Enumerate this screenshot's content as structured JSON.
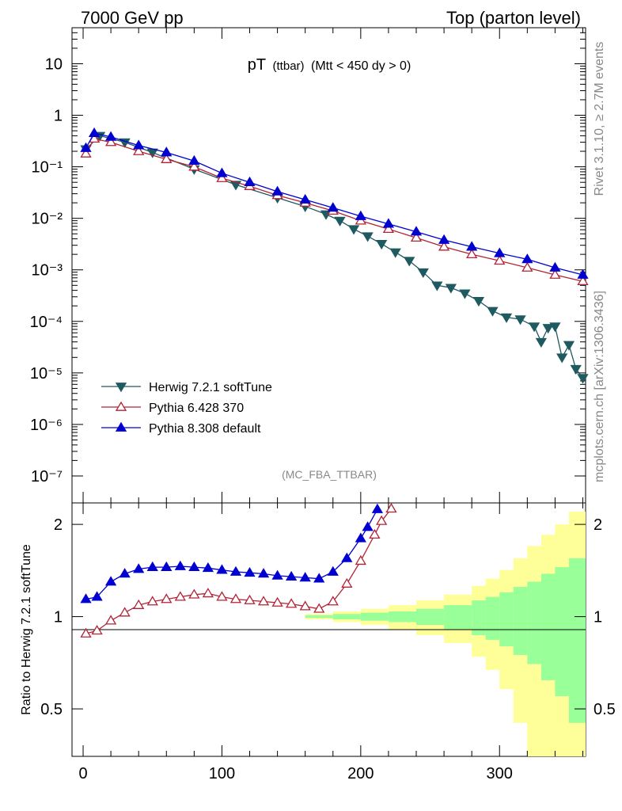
{
  "header": {
    "left": "7000 GeV pp",
    "right": "Top (parton level)"
  },
  "side_labels": {
    "rivet": "Rivet 3.1.10, ≥ 2.7M events",
    "mcplots": "mcplots.cern.ch [arXiv:1306.3436]"
  },
  "chart_data": [
    {
      "type": "line",
      "panel": "main",
      "title_main": "pT",
      "title_sub": "(ttbar)",
      "title_cut": "(Mtt < 450 dy > 0)",
      "watermark": "(MC_FBA_TTBAR)",
      "yscale": "log",
      "xlim": [
        -8,
        362
      ],
      "ylim": [
        3e-08,
        50
      ],
      "ytick_labels": [
        "10",
        "1",
        "10⁻¹",
        "10⁻²",
        "10⁻³",
        "10⁻⁴",
        "10⁻⁵",
        "10⁻⁶",
        "10⁻⁷"
      ],
      "legend_position": "bottom-left",
      "series": [
        {
          "name": "Herwig 7.2.1 softTune",
          "color": "#1f5a61",
          "marker": "triangle-down-filled",
          "points": [
            [
              2,
              0.22
            ],
            [
              12,
              0.4
            ],
            [
              30,
              0.3
            ],
            [
              50,
              0.19
            ],
            [
              80,
              0.09
            ],
            [
              110,
              0.045
            ],
            [
              140,
              0.025
            ],
            [
              160,
              0.017
            ],
            [
              175,
              0.012
            ],
            [
              185,
              0.009
            ],
            [
              195,
              0.0062
            ],
            [
              205,
              0.0045
            ],
            [
              215,
              0.0032
            ],
            [
              225,
              0.0022
            ],
            [
              235,
              0.0015
            ],
            [
              245,
              0.0009
            ],
            [
              255,
              0.0005
            ],
            [
              265,
              0.00045
            ],
            [
              275,
              0.00035
            ],
            [
              285,
              0.00025
            ],
            [
              295,
              0.00016
            ],
            [
              305,
              0.00012
            ],
            [
              315,
              0.00011
            ],
            [
              325,
              8e-05
            ],
            [
              330,
              4e-05
            ],
            [
              335,
              7.5e-05
            ],
            [
              340,
              8e-05
            ],
            [
              345,
              2e-05
            ],
            [
              350,
              3.5e-05
            ],
            [
              355,
              1.2e-05
            ],
            [
              360,
              8e-06
            ]
          ]
        },
        {
          "name": "Pythia 6.428 370",
          "color": "#b22234",
          "marker": "triangle-up-open",
          "points": [
            [
              2,
              0.18
            ],
            [
              8,
              0.35
            ],
            [
              20,
              0.3
            ],
            [
              40,
              0.2
            ],
            [
              60,
              0.14
            ],
            [
              80,
              0.1
            ],
            [
              100,
              0.06
            ],
            [
              120,
              0.042
            ],
            [
              140,
              0.028
            ],
            [
              160,
              0.02
            ],
            [
              180,
              0.014
            ],
            [
              200,
              0.009
            ],
            [
              220,
              0.0062
            ],
            [
              240,
              0.0042
            ],
            [
              260,
              0.0028
            ],
            [
              280,
              0.002
            ],
            [
              300,
              0.0015
            ],
            [
              320,
              0.0011
            ],
            [
              340,
              0.0008
            ],
            [
              360,
              0.0006
            ]
          ]
        },
        {
          "name": "Pythia 8.308 default",
          "color": "#0000d0",
          "marker": "triangle-up-filled",
          "points": [
            [
              2,
              0.23
            ],
            [
              8,
              0.45
            ],
            [
              20,
              0.38
            ],
            [
              40,
              0.26
            ],
            [
              60,
              0.19
            ],
            [
              80,
              0.13
            ],
            [
              100,
              0.075
            ],
            [
              120,
              0.05
            ],
            [
              140,
              0.033
            ],
            [
              160,
              0.023
            ],
            [
              180,
              0.016
            ],
            [
              200,
              0.011
            ],
            [
              220,
              0.0078
            ],
            [
              240,
              0.0055
            ],
            [
              260,
              0.0038
            ],
            [
              280,
              0.0028
            ],
            [
              300,
              0.0021
            ],
            [
              320,
              0.0016
            ],
            [
              340,
              0.0011
            ],
            [
              360,
              0.0008
            ]
          ]
        }
      ]
    },
    {
      "type": "line",
      "panel": "ratio",
      "ylabel": "Ratio to Herwig 7.2.1 softTune",
      "xlim": [
        -8,
        362
      ],
      "ylim": [
        0.35,
        2.35
      ],
      "xticks": [
        0,
        100,
        200,
        300
      ],
      "yticks": [
        0.5,
        1,
        2
      ],
      "ytick_labels": [
        "0.5",
        "1",
        "2"
      ],
      "band": {
        "x": [
          170,
          190,
          210,
          230,
          250,
          270,
          290,
          300,
          310,
          320,
          330,
          340,
          350,
          360
        ],
        "inner_half_width": [
          0.01,
          0.02,
          0.03,
          0.04,
          0.06,
          0.09,
          0.13,
          0.16,
          0.2,
          0.25,
          0.3,
          0.38,
          0.45,
          0.55
        ],
        "outer_half_width": [
          0.02,
          0.04,
          0.06,
          0.09,
          0.13,
          0.18,
          0.26,
          0.33,
          0.42,
          0.55,
          0.7,
          0.85,
          1.0,
          1.2
        ],
        "inner_color": "#99ff99",
        "outer_color": "#ffff99"
      },
      "series": [
        {
          "name": "Pythia 6.428 370",
          "color": "#b22234",
          "marker": "triangle-up-open",
          "points": [
            [
              2,
              0.88
            ],
            [
              10,
              0.9
            ],
            [
              20,
              0.97
            ],
            [
              30,
              1.03
            ],
            [
              40,
              1.09
            ],
            [
              50,
              1.12
            ],
            [
              60,
              1.14
            ],
            [
              70,
              1.16
            ],
            [
              80,
              1.18
            ],
            [
              90,
              1.19
            ],
            [
              100,
              1.16
            ],
            [
              110,
              1.14
            ],
            [
              120,
              1.13
            ],
            [
              130,
              1.12
            ],
            [
              140,
              1.11
            ],
            [
              150,
              1.1
            ],
            [
              160,
              1.08
            ],
            [
              170,
              1.06
            ],
            [
              180,
              1.12
            ],
            [
              190,
              1.28
            ],
            [
              200,
              1.52
            ],
            [
              210,
              1.85
            ],
            [
              215,
              2.05
            ],
            [
              222,
              2.25
            ]
          ]
        },
        {
          "name": "Pythia 8.308 default",
          "color": "#0000d0",
          "marker": "triangle-up-filled",
          "points": [
            [
              2,
              1.14
            ],
            [
              10,
              1.16
            ],
            [
              20,
              1.3
            ],
            [
              30,
              1.38
            ],
            [
              40,
              1.43
            ],
            [
              50,
              1.45
            ],
            [
              60,
              1.45
            ],
            [
              70,
              1.46
            ],
            [
              80,
              1.45
            ],
            [
              90,
              1.44
            ],
            [
              100,
              1.42
            ],
            [
              110,
              1.4
            ],
            [
              120,
              1.39
            ],
            [
              130,
              1.38
            ],
            [
              140,
              1.36
            ],
            [
              150,
              1.35
            ],
            [
              160,
              1.34
            ],
            [
              170,
              1.33
            ],
            [
              180,
              1.4
            ],
            [
              190,
              1.55
            ],
            [
              200,
              1.8
            ],
            [
              205,
              1.96
            ],
            [
              212,
              2.24
            ]
          ]
        }
      ]
    }
  ]
}
